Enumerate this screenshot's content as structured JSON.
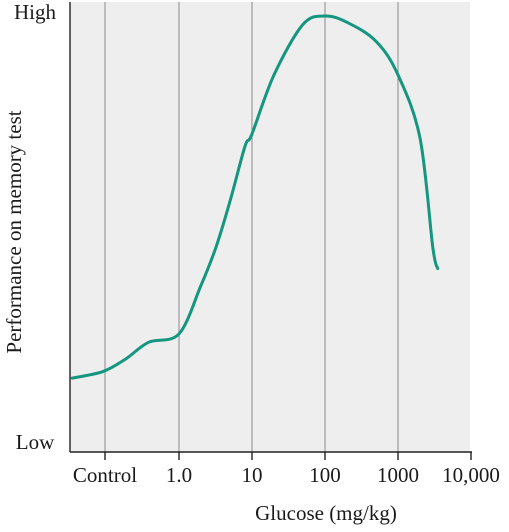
{
  "chart_data": {
    "type": "line",
    "xlabel": "Glucose (mg/kg)",
    "ylabel": "Performance on memory test",
    "x_scale": "log",
    "x_tick_labels": [
      "Control",
      "1.0",
      "10",
      "100",
      "1000",
      "10,000"
    ],
    "y_tick_labels": [
      "Low",
      "High"
    ],
    "ylim": [
      0,
      100
    ],
    "grid": "vertical lines at x ticks",
    "series": [
      {
        "color": "#14967f",
        "points": [
          [
            0.04,
            14
          ],
          [
            0.1,
            15.5
          ],
          [
            0.2,
            18.5
          ],
          [
            0.4,
            22.5
          ],
          [
            1,
            24.5
          ],
          [
            2,
            36
          ],
          [
            3.2,
            45
          ],
          [
            5,
            56
          ],
          [
            8,
            69
          ],
          [
            10,
            72
          ],
          [
            20,
            86
          ],
          [
            50,
            98
          ],
          [
            100,
            100
          ],
          [
            200,
            98.5
          ],
          [
            500,
            94
          ],
          [
            1000,
            86
          ],
          [
            2000,
            71
          ],
          [
            3000,
            45
          ],
          [
            3500,
            40
          ]
        ]
      }
    ]
  }
}
